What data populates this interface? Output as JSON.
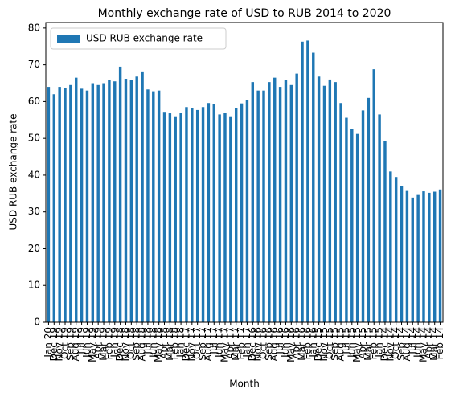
{
  "chart_data": {
    "type": "bar",
    "title": "Monthly exchange rate of USD to RUB 2014 to 2020",
    "x_label": "Month",
    "y_label": "USD RUB exchange rate",
    "categories": [
      "Jan 20",
      "Dec 19",
      "Nov 19",
      "Oct 19",
      "Sep 19",
      "Aug 19",
      "Jul 19",
      "Jun 19",
      "May 19",
      "Apr 19",
      "Mar 19",
      "Feb 19",
      "Jan 19",
      "Dec 18",
      "Nov 18",
      "Oct 18",
      "Sep 18",
      "Aug 18",
      "Jul 18",
      "Jun 18",
      "May 18",
      "Apr 18",
      "Mar 18",
      "Feb 18",
      "Jan 18",
      "Dec 17",
      "Nov 17",
      "Oct 17",
      "Sep 17",
      "Aug 17",
      "Jul 17",
      "Jun 17",
      "May 17",
      "Apr 17",
      "Mar 17",
      "Feb 17",
      "Jan 17",
      "Dec 16",
      "Nov 16",
      "Oct 16",
      "Sep 16",
      "Aug 16",
      "Jul 16",
      "Jun 16",
      "May 16",
      "Apr 16",
      "Mar 16",
      "Feb 16",
      "Jan 16",
      "Dec 15",
      "Nov 15",
      "Oct 15",
      "Sep 15",
      "Aug 15",
      "Jul 15",
      "Jun 15",
      "May 15",
      "Apr 15",
      "Mar 15",
      "Feb 15",
      "Jan 15",
      "Dec 14",
      "Nov 14",
      "Oct 14",
      "Sep 14",
      "Aug 14",
      "Jul 14",
      "Jun 14",
      "May 14",
      "Apr 14",
      "Mar 14",
      "Feb 14"
    ],
    "series": [
      {
        "name": "USD RUB exchange rate",
        "color": "#1f77b4",
        "values": [
          64,
          62,
          64,
          63.8,
          64.5,
          66.5,
          63.5,
          63,
          65,
          64.5,
          65,
          65.8,
          65.5,
          69.5,
          66.2,
          65.8,
          66.8,
          68.2,
          63.3,
          62.8,
          63,
          57.2,
          56.8,
          56,
          57,
          58.5,
          58.3,
          57.7,
          58.5,
          59.6,
          59.3,
          56.5,
          57,
          56,
          58.3,
          59.5,
          60.5,
          65.3,
          63,
          63,
          65.3,
          66.5,
          64,
          65.8,
          64.5,
          67.6,
          76.3,
          76.6,
          73.3,
          66.8,
          64.3,
          66,
          65.3,
          59.6,
          55.6,
          52.6,
          51.2,
          57.6,
          61,
          68.8,
          56.5,
          49.3,
          41,
          39.5,
          37,
          35.7,
          33.9,
          34.6,
          35.6,
          35.2,
          35.5,
          36.1
        ]
      }
    ],
    "ylim": [
      0,
      81.5
    ],
    "yticks": [
      0,
      10,
      20,
      30,
      40,
      50,
      60,
      70,
      80
    ],
    "legend": "upper left"
  }
}
